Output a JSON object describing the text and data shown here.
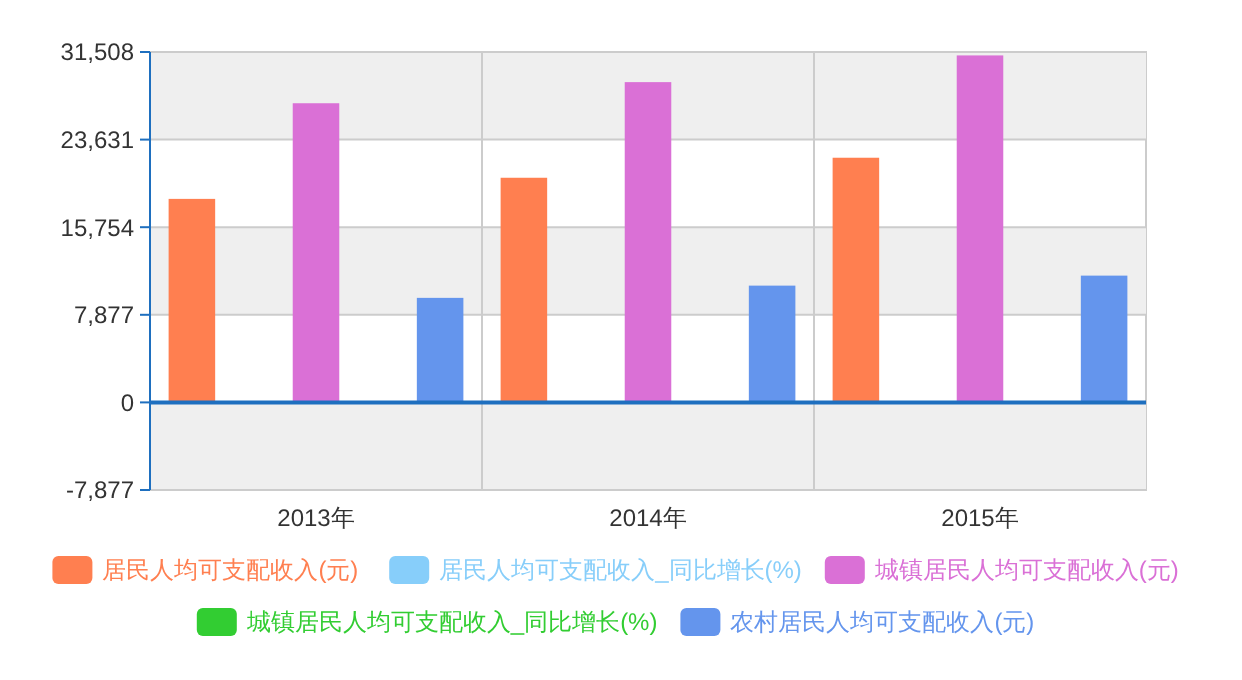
{
  "chart_data": {
    "type": "bar",
    "categories": [
      "2013年",
      "2014年",
      "2015年"
    ],
    "series": [
      {
        "name": "居民人均可支配收入(元)",
        "color": "#ff7f50",
        "values": [
          18300,
          20200,
          22000
        ]
      },
      {
        "name": "居民人均可支配收入_同比增长(%)",
        "color": "#87cefa",
        "values": [
          null,
          null,
          null
        ]
      },
      {
        "name": "城镇居民人均可支配收入(元)",
        "color": "#da70d6",
        "values": [
          26900,
          28800,
          31200
        ]
      },
      {
        "name": "城镇居民人均可支配收入_同比增长(%)",
        "color": "#32cd32",
        "values": [
          null,
          null,
          null
        ]
      },
      {
        "name": "农村居民人均可支配收入(元)",
        "color": "#6495ed",
        "values": [
          9400,
          10500,
          11400
        ]
      }
    ],
    "ylim": [
      -7877,
      31508
    ],
    "yticks": [
      {
        "value": -7877,
        "label": "-7,877"
      },
      0,
      {
        "value": 7877,
        "label": "7,877"
      },
      {
        "value": 15754,
        "label": "15,754"
      },
      {
        "value": 23631,
        "label": "23,631"
      },
      {
        "value": 31508,
        "label": "31,508"
      }
    ],
    "ref_lines": [
      {
        "axis": "y",
        "value": 0,
        "color": "#1e6fbf"
      }
    ],
    "grid": true,
    "legend": "bottom"
  }
}
